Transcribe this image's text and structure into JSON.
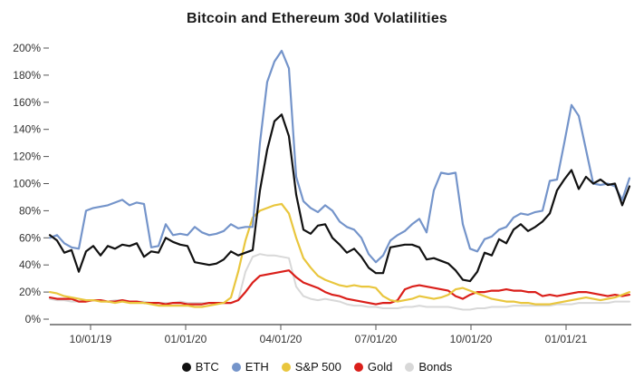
{
  "title": "Bitcoin and Ethereum 30d Volatilities",
  "colors": {
    "background": "#ffffff",
    "axis_line": "#444444",
    "tick_mark": "#555555",
    "tick_label": "#333333",
    "title_text": "#1a1a1a"
  },
  "chart_data": {
    "type": "line",
    "title": "Bitcoin and Ethereum 30d Volatilities",
    "xlabel": "",
    "ylabel": "",
    "grid": false,
    "legend_position": "bottom",
    "x_range": [
      0,
      80
    ],
    "ylim": [
      0,
      200
    ],
    "y_tick_step": 20,
    "y_tick_labels": [
      "0%",
      "20%",
      "40%",
      "60%",
      "80%",
      "100%",
      "120%",
      "140%",
      "160%",
      "180%",
      "200%"
    ],
    "x_tick_labels": [
      "10/01/19",
      "01/01/20",
      "04/01/20",
      "07/01/20",
      "10/01/20",
      "01/01/21"
    ],
    "x_tick_positions": [
      5.625,
      18.75,
      31.875,
      45.0,
      58.125,
      71.25
    ],
    "series": [
      {
        "name": "BTC",
        "color": "#111111",
        "values": [
          62,
          58,
          49,
          51,
          35,
          50,
          54,
          47,
          54,
          52,
          55,
          54,
          56,
          46,
          50,
          49,
          60,
          57,
          55,
          54,
          42,
          41,
          40,
          41,
          44,
          50,
          47,
          49,
          51,
          95,
          125,
          146,
          151,
          135,
          92,
          66,
          63,
          69,
          70,
          60,
          55,
          49,
          52,
          46,
          38,
          34,
          34,
          53,
          54,
          55,
          55,
          53,
          44,
          45,
          43,
          41,
          36,
          29,
          28,
          35,
          49,
          47,
          59,
          56,
          66,
          70,
          65,
          68,
          72,
          78,
          95,
          103,
          110,
          96,
          105,
          100,
          103,
          99,
          100,
          84,
          98
        ]
      },
      {
        "name": "ETH",
        "color": "#7494ca",
        "values": [
          60,
          62,
          56,
          53,
          52,
          80,
          82,
          83,
          84,
          86,
          88,
          84,
          86,
          85,
          53,
          54,
          70,
          62,
          63,
          62,
          68,
          64,
          62,
          63,
          65,
          70,
          67,
          68,
          68,
          130,
          175,
          190,
          198,
          185,
          105,
          87,
          82,
          79,
          84,
          80,
          72,
          68,
          66,
          60,
          48,
          42,
          47,
          58,
          62,
          65,
          70,
          74,
          64,
          95,
          108,
          107,
          108,
          70,
          52,
          50,
          59,
          61,
          66,
          68,
          75,
          78,
          77,
          79,
          80,
          102,
          103,
          130,
          158,
          150,
          125,
          100,
          99,
          100,
          98,
          88,
          104
        ]
      },
      {
        "name": "S&P 500",
        "color": "#e9c63d",
        "values": [
          20,
          19,
          17,
          16,
          15,
          14,
          14,
          13,
          13,
          12,
          13,
          12,
          12,
          12,
          11,
          10,
          10,
          10,
          10,
          10,
          9,
          9,
          10,
          11,
          12,
          16,
          35,
          58,
          75,
          80,
          82,
          84,
          85,
          78,
          60,
          45,
          38,
          32,
          29,
          27,
          25,
          24,
          25,
          24,
          24,
          23,
          17,
          14,
          13,
          14,
          15,
          17,
          16,
          15,
          16,
          18,
          22,
          23,
          21,
          19,
          17,
          15,
          14,
          13,
          13,
          12,
          12,
          11,
          11,
          11,
          12,
          13,
          14,
          15,
          16,
          15,
          14,
          15,
          16,
          18,
          20
        ]
      },
      {
        "name": "Gold",
        "color": "#da1f1a",
        "values": [
          16,
          15,
          15,
          15,
          13,
          13,
          14,
          14,
          13,
          13,
          14,
          13,
          13,
          12,
          12,
          12,
          11,
          12,
          12,
          11,
          11,
          11,
          12,
          12,
          12,
          12,
          14,
          20,
          27,
          32,
          33,
          34,
          35,
          36,
          31,
          27,
          25,
          23,
          20,
          18,
          17,
          15,
          14,
          13,
          12,
          11,
          12,
          12,
          14,
          22,
          24,
          25,
          24,
          23,
          22,
          21,
          17,
          15,
          18,
          20,
          20,
          21,
          21,
          22,
          21,
          21,
          20,
          20,
          17,
          18,
          17,
          18,
          19,
          20,
          20,
          19,
          18,
          17,
          18,
          17,
          18
        ]
      },
      {
        "name": "Bonds",
        "color": "#d8d8d8",
        "values": [
          15,
          14,
          14,
          13,
          13,
          14,
          14,
          14,
          13,
          14,
          14,
          13,
          13,
          13,
          12,
          12,
          12,
          12,
          13,
          12,
          12,
          12,
          12,
          12,
          12,
          12,
          14,
          35,
          46,
          48,
          47,
          47,
          46,
          45,
          24,
          17,
          15,
          14,
          15,
          14,
          13,
          11,
          10,
          10,
          9,
          9,
          8,
          8,
          8,
          9,
          9,
          10,
          9,
          9,
          9,
          9,
          8,
          7,
          7,
          8,
          8,
          9,
          9,
          9,
          10,
          10,
          10,
          10,
          10,
          10,
          11,
          11,
          11,
          12,
          12,
          12,
          12,
          12,
          13,
          13,
          13
        ]
      }
    ]
  }
}
